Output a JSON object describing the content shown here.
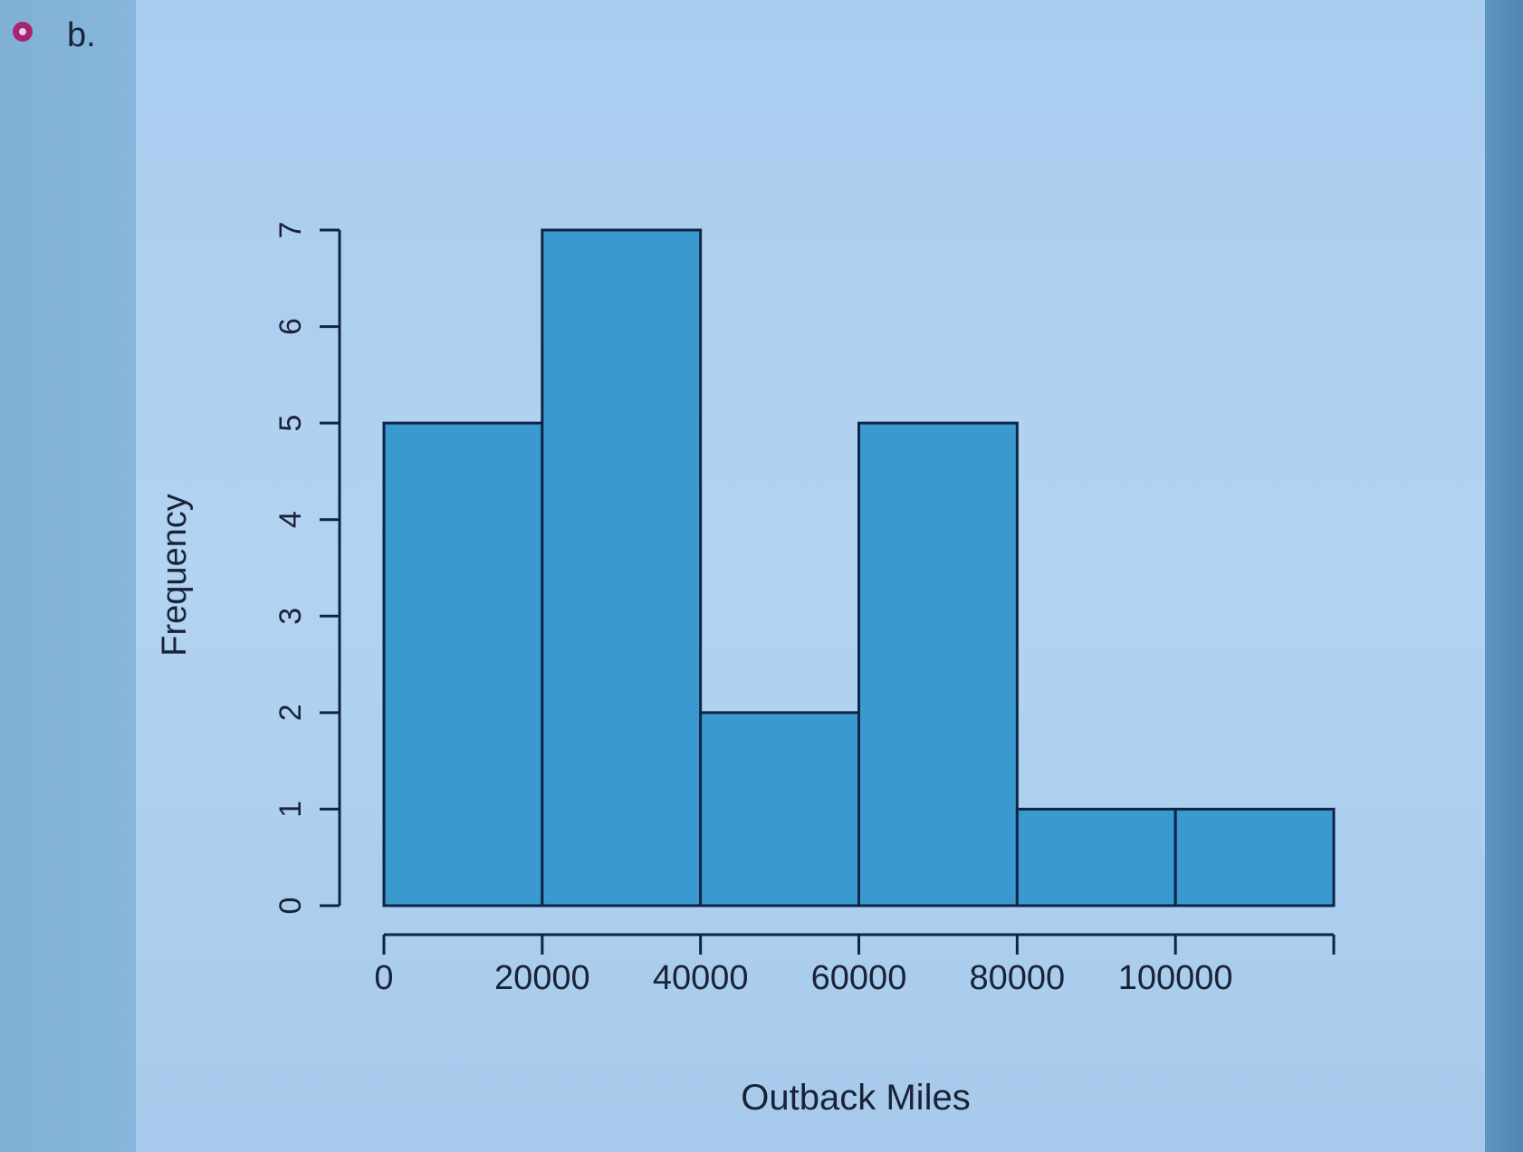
{
  "option": {
    "label": "b.",
    "marker_color": "#a8246e"
  },
  "colors": {
    "bar_fill": "#3a9ad0",
    "bar_stroke": "#0f2446",
    "axis": "#0f2446",
    "text": "#1a2238"
  },
  "chart_data": {
    "type": "bar",
    "subtype": "histogram",
    "title": "",
    "xlabel": "Outback Miles",
    "ylabel": "Frequency",
    "bins": [
      [
        0,
        20000
      ],
      [
        20000,
        40000
      ],
      [
        40000,
        60000
      ],
      [
        60000,
        80000
      ],
      [
        80000,
        100000
      ],
      [
        100000,
        120000
      ]
    ],
    "categories": [
      "0-20000",
      "20000-40000",
      "40000-60000",
      "60000-80000",
      "80000-100000",
      "100000-120000"
    ],
    "values": [
      5,
      7,
      2,
      5,
      1,
      1
    ],
    "xlim": [
      0,
      120000
    ],
    "ylim": [
      0,
      7
    ],
    "x_ticks": [
      "0",
      "20000",
      "40000",
      "60000",
      "80000",
      "100000"
    ],
    "y_ticks": [
      "0",
      "1",
      "2",
      "3",
      "4",
      "5",
      "6",
      "7"
    ],
    "grid": false,
    "legend": null
  }
}
